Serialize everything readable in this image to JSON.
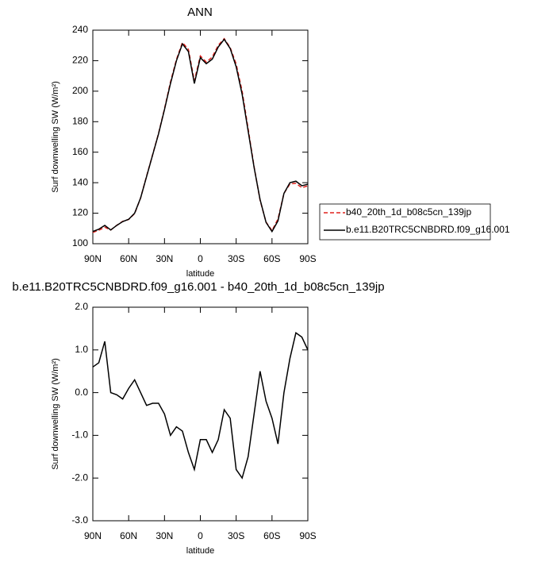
{
  "chart_data": [
    {
      "type": "line",
      "title": "ANN",
      "x_label": "latitude",
      "y_label": "Surf downwelling SW (W/m²)",
      "x": [
        90,
        85,
        80,
        75,
        70,
        65,
        60,
        55,
        50,
        45,
        40,
        35,
        30,
        25,
        20,
        15,
        10,
        5,
        0,
        -5,
        -10,
        -15,
        -20,
        -25,
        -30,
        -35,
        -40,
        -45,
        -50,
        -55,
        -60,
        -65,
        -70,
        -75,
        -80,
        -85,
        -90
      ],
      "series": [
        {
          "name": "b40_20th_1d_b08c5cn_139jp",
          "color": "#e0201b",
          "dashed": true,
          "values": [
            107.4,
            108.8,
            110.8,
            109,
            112.05,
            114.65,
            115.9,
            119.7,
            130,
            144.3,
            158.25,
            172.25,
            188.5,
            206,
            220.8,
            231.9,
            227.4,
            206.8,
            223.1,
            219.1,
            222.4,
            230.1,
            234.4,
            228.6,
            217.8,
            200,
            175.5,
            150.5,
            128.5,
            114.2,
            108.6,
            116.2,
            133,
            139.2,
            139.6,
            136.7,
            138
          ]
        },
        {
          "name": "b.e11.B20TRC5CNBDRD.f09_g16.001",
          "color": "#000000",
          "dashed": false,
          "values": [
            108,
            109.5,
            112,
            109,
            112,
            114.5,
            116,
            120,
            130,
            144,
            158,
            172,
            188,
            205,
            220,
            231,
            226,
            205,
            222,
            218,
            221,
            229,
            234,
            228,
            216,
            198,
            174,
            150,
            129,
            114,
            108,
            115,
            133,
            140,
            141,
            138,
            139
          ]
        }
      ],
      "xlim": [
        90,
        -90
      ],
      "xticks": [
        {
          "value": 90,
          "label": "90N"
        },
        {
          "value": 60,
          "label": "60N"
        },
        {
          "value": 30,
          "label": "30N"
        },
        0,
        {
          "value": -30,
          "label": "30S"
        },
        {
          "value": -60,
          "label": "60S"
        },
        {
          "value": -90,
          "label": "90S"
        }
      ],
      "ylim": [
        100,
        240
      ],
      "yticks": [
        100,
        120,
        140,
        160,
        180,
        200,
        220,
        240
      ],
      "legend": "outside-right"
    },
    {
      "type": "line",
      "title": "b.e11.B20TRC5CNBDRD.f09_g16.001 - b40_20th_1d_b08c5cn_139jp",
      "x_label": "latitude",
      "y_label": "Surf downwelling SW (W/m²)",
      "x": [
        90,
        85,
        80,
        75,
        70,
        65,
        60,
        55,
        50,
        45,
        40,
        35,
        30,
        25,
        20,
        15,
        10,
        5,
        0,
        -5,
        -10,
        -15,
        -20,
        -25,
        -30,
        -35,
        -40,
        -45,
        -50,
        -55,
        -60,
        -65,
        -70,
        -75,
        -80,
        -85,
        -90
      ],
      "series": [
        {
          "color": "#000000",
          "dashed": false,
          "values": [
            0.6,
            0.7,
            1.2,
            0,
            -0.05,
            -0.15,
            0.1,
            0.3,
            0,
            -0.3,
            -0.25,
            -0.25,
            -0.5,
            -1.0,
            -0.8,
            -0.9,
            -1.4,
            -1.8,
            -1.1,
            -1.1,
            -1.4,
            -1.1,
            -0.4,
            -0.6,
            -1.8,
            -2.0,
            -1.5,
            -0.5,
            0.5,
            -0.2,
            -0.6,
            -1.2,
            0.0,
            0.8,
            1.4,
            1.3,
            1.0
          ]
        }
      ],
      "xlim": [
        90,
        -90
      ],
      "xticks": [
        {
          "value": 90,
          "label": "90N"
        },
        {
          "value": 60,
          "label": "60N"
        },
        {
          "value": 30,
          "label": "30N"
        },
        0,
        {
          "value": -30,
          "label": "30S"
        },
        {
          "value": -60,
          "label": "60S"
        },
        {
          "value": -90,
          "label": "90S"
        }
      ],
      "ylim": [
        -3,
        2
      ],
      "yticks": [
        {
          "value": -3,
          "label": "-3.0"
        },
        {
          "value": -2,
          "label": "-2.0"
        },
        {
          "value": -1,
          "label": "-1.0"
        },
        {
          "value": 0,
          "label": "0.0"
        },
        {
          "value": 1,
          "label": "1.0"
        },
        {
          "value": 2,
          "label": "2.0"
        }
      ]
    }
  ]
}
